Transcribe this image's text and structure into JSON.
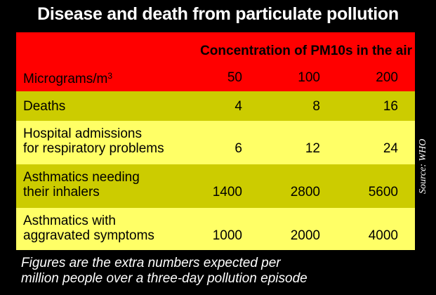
{
  "title": "Disease and death from particulate pollution",
  "colors": {
    "header": "#ff0000",
    "dark_band": "#cccc00",
    "light_band": "#ffff66",
    "background": "#000000"
  },
  "chart_data": {
    "type": "table",
    "title": "Disease and death from particulate pollution",
    "header_caption": "Concentration of PM10s in the air",
    "unit_label": "Micrograms/m",
    "unit_exponent": "3",
    "columns": [
      "50",
      "100",
      "200"
    ],
    "rows": [
      {
        "label_lines": [
          "Deaths"
        ],
        "values": [
          "4",
          "8",
          "16"
        ]
      },
      {
        "label_lines": [
          "Hospital admissions",
          "for respiratory problems"
        ],
        "values": [
          "6",
          "12",
          "24"
        ]
      },
      {
        "label_lines": [
          "Asthmatics needing",
          "their inhalers"
        ],
        "values": [
          "1400",
          "2800",
          "5600"
        ]
      },
      {
        "label_lines": [
          "Asthmatics with",
          "aggravated symptoms"
        ],
        "values": [
          "1000",
          "2000",
          "4000"
        ]
      }
    ]
  },
  "footnote": {
    "line1": "Figures are the extra numbers expected per",
    "line2": "million people over a three-day pollution episode"
  },
  "source": "Source: WHO"
}
